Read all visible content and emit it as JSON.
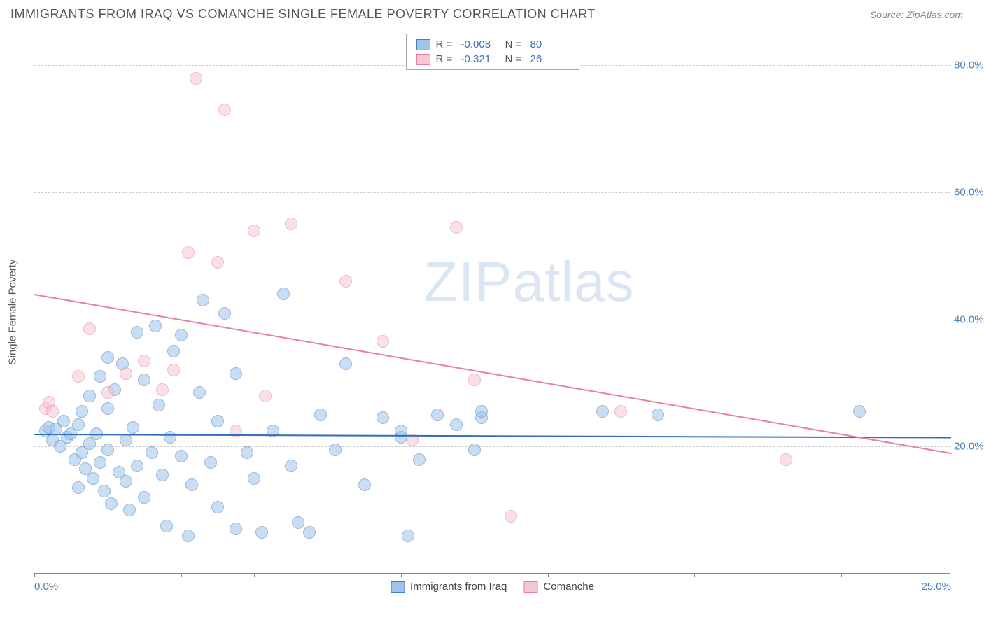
{
  "header": {
    "title": "IMMIGRANTS FROM IRAQ VS COMANCHE SINGLE FEMALE POVERTY CORRELATION CHART",
    "source": "Source: ZipAtlas.com"
  },
  "chart": {
    "type": "scatter",
    "y_axis_label": "Single Female Poverty",
    "xlim": [
      0,
      25
    ],
    "ylim": [
      0,
      85
    ],
    "x_ticks": [
      0,
      2,
      4,
      6,
      8,
      10,
      12,
      14,
      16,
      18,
      20,
      22,
      24
    ],
    "x_tick_labels": {
      "0": "0.0%",
      "25": "25.0%"
    },
    "y_gridlines": [
      20,
      40,
      60,
      80
    ],
    "y_tick_labels": {
      "20": "20.0%",
      "40": "40.0%",
      "60": "60.0%",
      "80": "80.0%"
    },
    "background_color": "#ffffff",
    "grid_color": "#cccccc",
    "axis_color": "#888888",
    "label_color": "#4a7ebb",
    "point_radius": 9,
    "point_opacity": 0.55,
    "series": [
      {
        "name": "Immigrants from Iraq",
        "fill": "#9ec4e8",
        "stroke": "#4a7ebb",
        "trend": {
          "y_at_x0": 22.0,
          "y_at_xmax": 21.5,
          "color": "#2f6fc0",
          "width": 2
        },
        "R": "-0.008",
        "N": "80",
        "points": [
          [
            0.3,
            22.5
          ],
          [
            0.4,
            23.0
          ],
          [
            0.5,
            21.0
          ],
          [
            0.6,
            22.8
          ],
          [
            0.7,
            20.0
          ],
          [
            0.8,
            24.0
          ],
          [
            0.9,
            21.5
          ],
          [
            1.0,
            22.0
          ],
          [
            1.1,
            18.0
          ],
          [
            1.2,
            23.5
          ],
          [
            1.3,
            19.0
          ],
          [
            1.3,
            25.5
          ],
          [
            1.4,
            16.5
          ],
          [
            1.5,
            20.5
          ],
          [
            1.5,
            28.0
          ],
          [
            1.6,
            15.0
          ],
          [
            1.7,
            22.0
          ],
          [
            1.8,
            17.5
          ],
          [
            1.8,
            31.0
          ],
          [
            1.9,
            13.0
          ],
          [
            2.0,
            19.5
          ],
          [
            2.0,
            26.0
          ],
          [
            2.1,
            11.0
          ],
          [
            2.2,
            29.0
          ],
          [
            2.3,
            16.0
          ],
          [
            2.4,
            33.0
          ],
          [
            2.5,
            14.5
          ],
          [
            2.5,
            21.0
          ],
          [
            2.6,
            10.0
          ],
          [
            2.7,
            23.0
          ],
          [
            2.8,
            17.0
          ],
          [
            2.8,
            38.0
          ],
          [
            3.0,
            12.0
          ],
          [
            3.0,
            30.5
          ],
          [
            3.2,
            19.0
          ],
          [
            3.3,
            39.0
          ],
          [
            3.4,
            26.5
          ],
          [
            3.5,
            15.5
          ],
          [
            3.6,
            7.5
          ],
          [
            3.7,
            21.5
          ],
          [
            3.8,
            35.0
          ],
          [
            4.0,
            18.5
          ],
          [
            4.0,
            37.5
          ],
          [
            4.2,
            6.0
          ],
          [
            4.3,
            14.0
          ],
          [
            4.5,
            28.5
          ],
          [
            4.6,
            43.0
          ],
          [
            4.8,
            17.5
          ],
          [
            5.0,
            10.5
          ],
          [
            5.0,
            24.0
          ],
          [
            5.2,
            41.0
          ],
          [
            5.5,
            31.5
          ],
          [
            5.5,
            7.0
          ],
          [
            5.8,
            19.0
          ],
          [
            6.0,
            15.0
          ],
          [
            6.2,
            6.5
          ],
          [
            6.5,
            22.5
          ],
          [
            6.8,
            44.0
          ],
          [
            7.0,
            17.0
          ],
          [
            7.2,
            8.0
          ],
          [
            7.5,
            6.5
          ],
          [
            7.8,
            25.0
          ],
          [
            8.2,
            19.5
          ],
          [
            8.5,
            33.0
          ],
          [
            9.0,
            14.0
          ],
          [
            9.5,
            24.5
          ],
          [
            10.0,
            21.5
          ],
          [
            10.0,
            22.5
          ],
          [
            10.2,
            6.0
          ],
          [
            10.5,
            18.0
          ],
          [
            11.0,
            25.0
          ],
          [
            11.5,
            23.5
          ],
          [
            12.0,
            19.5
          ],
          [
            12.2,
            24.5
          ],
          [
            12.2,
            25.5
          ],
          [
            15.5,
            25.5
          ],
          [
            17.0,
            25.0
          ],
          [
            22.5,
            25.5
          ],
          [
            1.2,
            13.5
          ],
          [
            2.0,
            34.0
          ]
        ]
      },
      {
        "name": "Comanche",
        "fill": "#f5c6d3",
        "stroke": "#e8809f",
        "trend": {
          "y_at_x0": 44.0,
          "y_at_xmax": 19.0,
          "color": "#e8809f",
          "width": 2
        },
        "R": "-0.321",
        "N": "26",
        "points": [
          [
            0.3,
            26.0
          ],
          [
            0.4,
            27.0
          ],
          [
            0.5,
            25.5
          ],
          [
            1.2,
            31.0
          ],
          [
            1.5,
            38.5
          ],
          [
            2.0,
            28.5
          ],
          [
            2.5,
            31.5
          ],
          [
            3.0,
            33.5
          ],
          [
            3.5,
            29.0
          ],
          [
            3.8,
            32.0
          ],
          [
            4.2,
            50.5
          ],
          [
            4.4,
            78.0
          ],
          [
            5.0,
            49.0
          ],
          [
            5.2,
            73.0
          ],
          [
            5.5,
            22.5
          ],
          [
            6.0,
            54.0
          ],
          [
            6.3,
            28.0
          ],
          [
            7.0,
            55.0
          ],
          [
            8.5,
            46.0
          ],
          [
            9.5,
            36.5
          ],
          [
            10.3,
            21.0
          ],
          [
            11.5,
            54.5
          ],
          [
            12.0,
            30.5
          ],
          [
            13.0,
            9.0
          ],
          [
            16.0,
            25.5
          ],
          [
            20.5,
            18.0
          ]
        ]
      }
    ]
  },
  "watermark": {
    "part1": "ZIP",
    "part2": "atlas"
  },
  "legend_bottom": {
    "series1_label": "Immigrants from Iraq",
    "series2_label": "Comanche"
  },
  "legend_top": {
    "r_label": "R =",
    "n_label": "N ="
  }
}
